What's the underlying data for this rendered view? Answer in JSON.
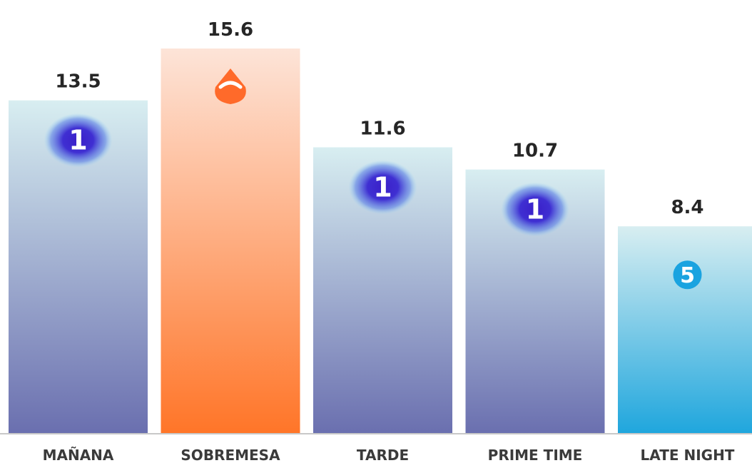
{
  "chart_data": {
    "type": "bar",
    "categories": [
      "MAÑANA",
      "SOBREMESA",
      "TARDE",
      "PRIME TIME",
      "LATE NIGHT"
    ],
    "values": [
      13.5,
      15.6,
      11.6,
      10.7,
      8.4
    ],
    "value_labels": [
      "13.5",
      "15.6",
      "11.6",
      "10.7",
      "8.4"
    ],
    "bar_icons": [
      "la1-logo-icon",
      "antena3-logo-icon",
      "la1-logo-icon",
      "la1-logo-icon",
      "telecinco-logo-icon"
    ],
    "bar_gradients": [
      [
        "#d8eef1",
        "#6a6faf"
      ],
      [
        "#fde4d8",
        "#ff7528"
      ],
      [
        "#d8eef1",
        "#6a6faf"
      ],
      [
        "#d8eef1",
        "#6a6faf"
      ],
      [
        "#d8eef1",
        "#1fa6dd"
      ]
    ],
    "ylim": [
      0,
      15.6
    ],
    "grid": false,
    "legend": "none"
  }
}
